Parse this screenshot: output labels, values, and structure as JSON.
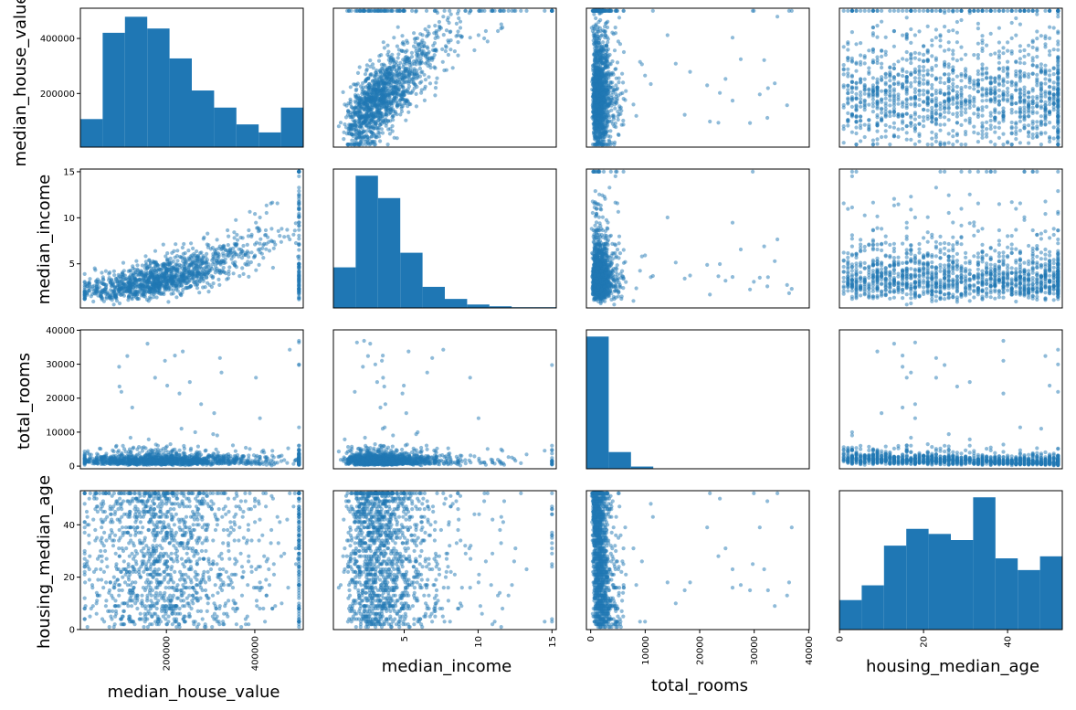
{
  "chart_data": {
    "type": "scatter_matrix",
    "variables": [
      "median_house_value",
      "median_income",
      "total_rooms",
      "housing_median_age"
    ],
    "labels": {
      "rows": [
        "median_house_value",
        "median_income",
        "total_rooms",
        "housing_median_age"
      ],
      "cols": [
        "median_house_value",
        "median_income",
        "total_rooms",
        "housing_median_age"
      ]
    },
    "ranges": {
      "median_house_value": [
        14999,
        500001
      ],
      "median_income": [
        0.5,
        15.0001
      ],
      "total_rooms": [
        2,
        39320
      ],
      "housing_median_age": [
        1,
        52
      ]
    },
    "ticks": {
      "median_house_value": [
        200000,
        400000
      ],
      "median_income": [
        5,
        10,
        15
      ],
      "total_rooms": [
        0,
        10000,
        20000,
        30000,
        40000
      ],
      "housing_median_age": [
        0,
        20,
        40
      ]
    },
    "histograms": {
      "median_house_value": {
        "bin_edges": [
          14999,
          63499,
          111999,
          160499,
          208999,
          257499,
          305999,
          354499,
          402999,
          451499,
          500001
        ],
        "counts": [
          1050,
          4280,
          4880,
          4440,
          3320,
          2120,
          1480,
          850,
          550,
          1480
        ],
        "ylim": [
          0,
          5200
        ]
      },
      "median_income": {
        "bin_edges": [
          0.5,
          1.95,
          3.4,
          4.85,
          6.3,
          7.75,
          9.2,
          10.65,
          12.1,
          13.55,
          15.0
        ],
        "counts": [
          2250,
          7330,
          6090,
          3060,
          1170,
          500,
          190,
          90,
          40,
          40
        ],
        "ylim": [
          0,
          7700
        ]
      },
      "total_rooms": {
        "bin_edges": [
          2,
          3934,
          7866,
          11798,
          15730,
          19662,
          23594,
          27526,
          31458,
          35390,
          39320
        ],
        "counts": [
          17800,
          2250,
          300,
          50,
          20,
          10,
          5,
          3,
          2,
          2
        ],
        "ylim": [
          0,
          18700
        ]
      },
      "housing_median_age": {
        "bin_edges": [
          1,
          6.1,
          11.2,
          16.3,
          21.4,
          26.5,
          31.6,
          36.7,
          41.8,
          46.9,
          52
        ],
        "counts": [
          580,
          870,
          1650,
          1980,
          1880,
          1760,
          2600,
          1400,
          1170,
          1440
        ],
        "ylim": [
          0,
          2730
        ]
      }
    },
    "style": {
      "color": "#1f77b4",
      "point_alpha": 0.5,
      "grid": false
    }
  }
}
